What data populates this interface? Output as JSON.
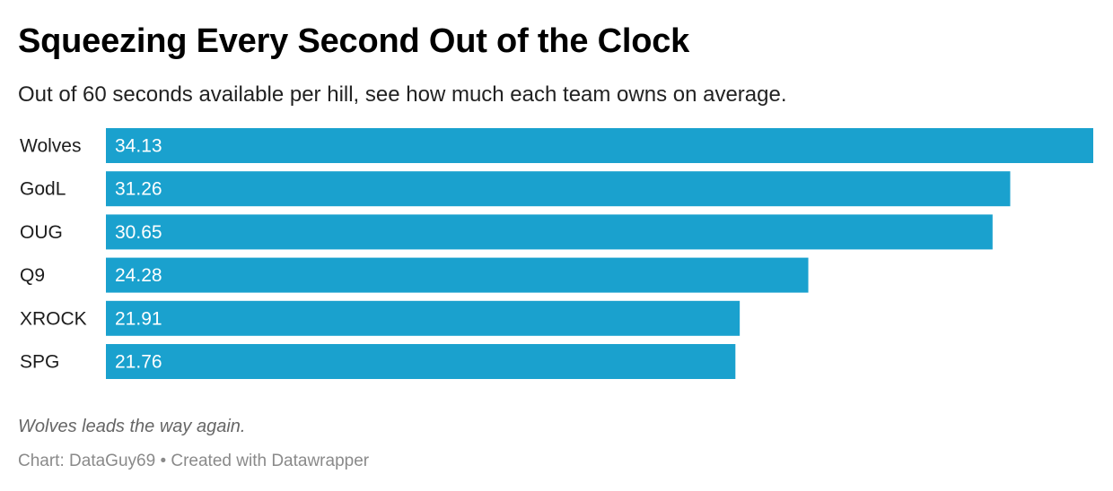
{
  "header": {
    "title": "Squeezing Every Second Out of the Clock",
    "subtitle": "Out of 60 seconds available per hill, see how much each team owns on average."
  },
  "footer": {
    "note": "Wolves leads the way again.",
    "source_label": "Chart:",
    "source_name": "DataGuy69",
    "separator": "•",
    "created_with": "Created with Datawrapper"
  },
  "colors": {
    "bar": "#1aa1ce",
    "bar_label": "#ffffff",
    "category_label": "#1d1d1d"
  },
  "chart_data": {
    "type": "bar",
    "orientation": "horizontal",
    "title": "Squeezing Every Second Out of the Clock",
    "subtitle": "Out of 60 seconds available per hill, see how much each team owns on average.",
    "categories": [
      "Wolves",
      "GodL",
      "OUG",
      "Q9",
      "XROCK",
      "SPG"
    ],
    "values": [
      34.13,
      31.26,
      30.65,
      24.28,
      21.91,
      21.76
    ],
    "value_labels": [
      "34.13",
      "31.26",
      "30.65",
      "24.28",
      "21.91",
      "21.76"
    ],
    "xlim": [
      0,
      34.13
    ],
    "grid": false,
    "legend": "none",
    "data_labels": "inside-left"
  }
}
